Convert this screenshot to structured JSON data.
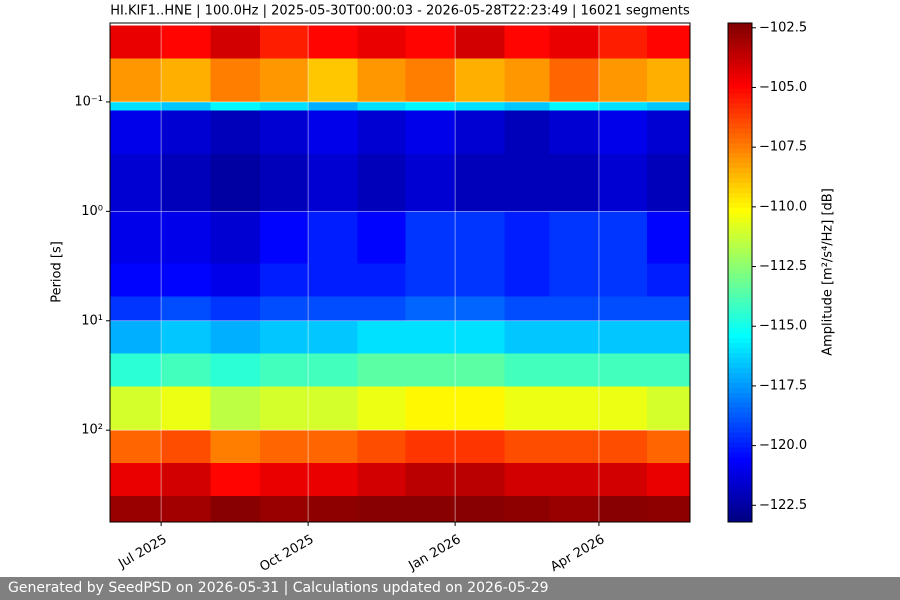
{
  "chart_data": {
    "type": "heatmap",
    "title": "HI.KIF1..HNE | 100.0Hz | 2025-05-30T00:00:03 - 2026-05-28T22:23:49 | 16021 segments",
    "y_label": "Period [s]",
    "colorbar_label": "Amplitude [m²/s⁴/Hz] [dB]",
    "colormap": "jet",
    "y_log": true,
    "y_inverted": true,
    "grid": true,
    "x": [
      "2025-05-30",
      "2025-07-01",
      "2025-08-01",
      "2025-09-01",
      "2025-10-01",
      "2025-11-01",
      "2025-12-01",
      "2026-01-01",
      "2026-02-01",
      "2026-03-01",
      "2026-04-01",
      "2026-05-01",
      "2026-05-28"
    ],
    "y": [
      0.02,
      0.04,
      0.1,
      0.12,
      0.3,
      1,
      3,
      6,
      10,
      20,
      40,
      100,
      200,
      400,
      690
    ],
    "values": [
      [
        -104.5,
        -105,
        -104,
        -105.5,
        -105,
        -104.5,
        -105,
        -104,
        -105,
        -104.5,
        -105.5,
        -105
      ],
      [
        -108,
        -108.5,
        -107.5,
        -108,
        -109,
        -108,
        -107.5,
        -108.5,
        -108,
        -107,
        -108,
        -108.5
      ],
      [
        -116,
        -116.5,
        -115.5,
        -116,
        -117,
        -116,
        -115.5,
        -116,
        -116.5,
        -115.5,
        -116,
        -116.5
      ],
      [
        -121,
        -121.5,
        -122,
        -121.5,
        -121,
        -121.5,
        -121,
        -121.5,
        -122,
        -121.5,
        -121,
        -121.5
      ],
      [
        -121.5,
        -122,
        -122.5,
        -122,
        -121.5,
        -122,
        -121.5,
        -122,
        -122,
        -122,
        -121.5,
        -122
      ],
      [
        -121,
        -121,
        -121.5,
        -120.5,
        -120,
        -120.5,
        -119.5,
        -119.5,
        -120,
        -119.5,
        -119.5,
        -120.5
      ],
      [
        -120.5,
        -120.5,
        -121,
        -120,
        -120,
        -120,
        -119.5,
        -119.5,
        -120,
        -119.5,
        -119.5,
        -120
      ],
      [
        -119.5,
        -119,
        -119.5,
        -119,
        -119,
        -119,
        -118.5,
        -118.5,
        -119,
        -119,
        -119,
        -119
      ],
      [
        -117,
        -116.5,
        -117,
        -116.5,
        -116.5,
        -116,
        -116,
        -116,
        -116.5,
        -116.5,
        -116.5,
        -116.5
      ],
      [
        -114.5,
        -114,
        -114.5,
        -114,
        -114,
        -113.5,
        -113.5,
        -113.5,
        -114,
        -114,
        -114,
        -114
      ],
      [
        -111,
        -110.5,
        -111.5,
        -111,
        -111,
        -110.5,
        -110,
        -110,
        -110.5,
        -110.5,
        -110.5,
        -111
      ],
      [
        -107,
        -106.5,
        -107.5,
        -107,
        -107,
        -106.5,
        -106,
        -106,
        -106.5,
        -106.5,
        -106.5,
        -107
      ],
      [
        -104.5,
        -104,
        -105,
        -104.5,
        -104.5,
        -104,
        -103.5,
        -103.5,
        -104,
        -104,
        -104,
        -104.5
      ],
      [
        -102.8,
        -103,
        -102.5,
        -102.8,
        -102.6,
        -102.5,
        -102.5,
        -102.5,
        -102.6,
        -102.8,
        -102.5,
        -102.6
      ]
    ],
    "xlim": [
      "2025-05-30",
      "2026-05-28"
    ],
    "xticks": [
      {
        "value": "2025-07-01",
        "label": "Jul 2025"
      },
      {
        "value": "2025-10-01",
        "label": "Oct 2025"
      },
      {
        "value": "2026-01-01",
        "label": "Jan 2026"
      },
      {
        "value": "2026-04-01",
        "label": "Apr 2026"
      }
    ],
    "ylim": [
      0.019,
      690
    ],
    "yticks": [
      {
        "value": 0.1,
        "label": "10⁻¹"
      },
      {
        "value": 1,
        "label": "10⁰"
      },
      {
        "value": 10,
        "label": "10¹"
      },
      {
        "value": 100,
        "label": "10²"
      }
    ],
    "clim": [
      -123.2,
      -102.3
    ],
    "cticks": [
      {
        "value": -102.5,
        "label": "−102.5"
      },
      {
        "value": -105,
        "label": "−105.0"
      },
      {
        "value": -107.5,
        "label": "−107.5"
      },
      {
        "value": -110,
        "label": "−110.0"
      },
      {
        "value": -112.5,
        "label": "−112.5"
      },
      {
        "value": -115,
        "label": "−115.0"
      },
      {
        "value": -117.5,
        "label": "−117.5"
      },
      {
        "value": -120,
        "label": "−120.0"
      },
      {
        "value": -122.5,
        "label": "−122.5"
      }
    ]
  },
  "footer": "Generated by SeedPSD on 2026-05-31 | Calculations updated on 2026-05-29"
}
